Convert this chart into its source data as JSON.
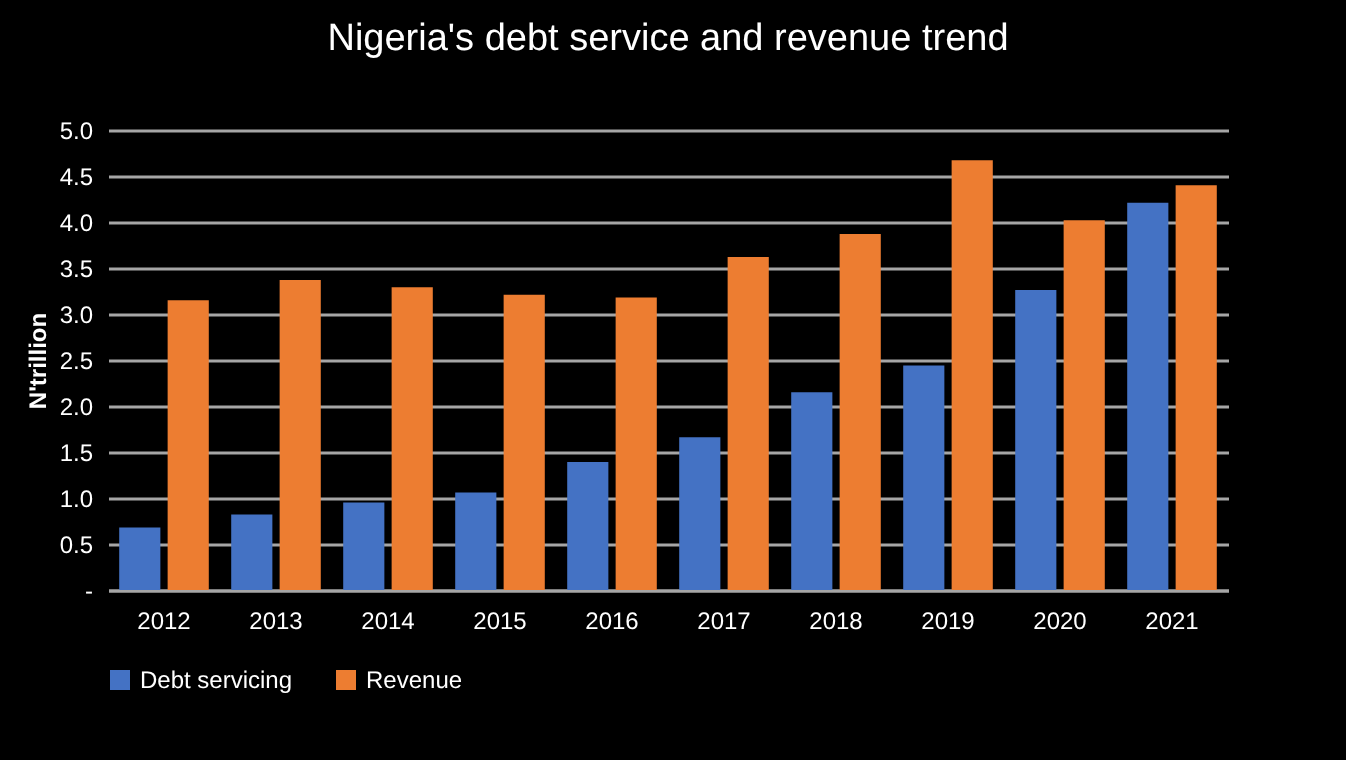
{
  "chart_data": {
    "type": "bar",
    "title": "Nigeria's debt service and revenue trend",
    "ylabel": "N'trillion",
    "categories": [
      "2012",
      "2013",
      "2014",
      "2015",
      "2016",
      "2017",
      "2018",
      "2019",
      "2020",
      "2021"
    ],
    "series": [
      {
        "name": "Debt servicing",
        "color": "#4472c4",
        "values": [
          0.68,
          0.82,
          0.95,
          1.06,
          1.39,
          1.66,
          2.15,
          2.44,
          3.26,
          4.21
        ]
      },
      {
        "name": "Revenue",
        "color": "#ed7d31",
        "values": [
          3.15,
          3.37,
          3.29,
          3.21,
          3.18,
          3.62,
          3.87,
          4.67,
          4.02,
          4.4
        ]
      }
    ],
    "ylim": [
      0,
      5
    ],
    "yticks": [
      {
        "value": 0,
        "label": "-"
      },
      {
        "value": 0.5,
        "label": "0.5"
      },
      {
        "value": 1,
        "label": "1.0"
      },
      {
        "value": 1.5,
        "label": "1.5"
      },
      {
        "value": 2,
        "label": "2.0"
      },
      {
        "value": 2.5,
        "label": "2.5"
      },
      {
        "value": 3,
        "label": "3.0"
      },
      {
        "value": 3.5,
        "label": "3.5"
      },
      {
        "value": 4,
        "label": "4.0"
      },
      {
        "value": 4.5,
        "label": "4.5"
      },
      {
        "value": 5,
        "label": "5.0"
      }
    ],
    "grid": true,
    "legend": "bottom"
  }
}
